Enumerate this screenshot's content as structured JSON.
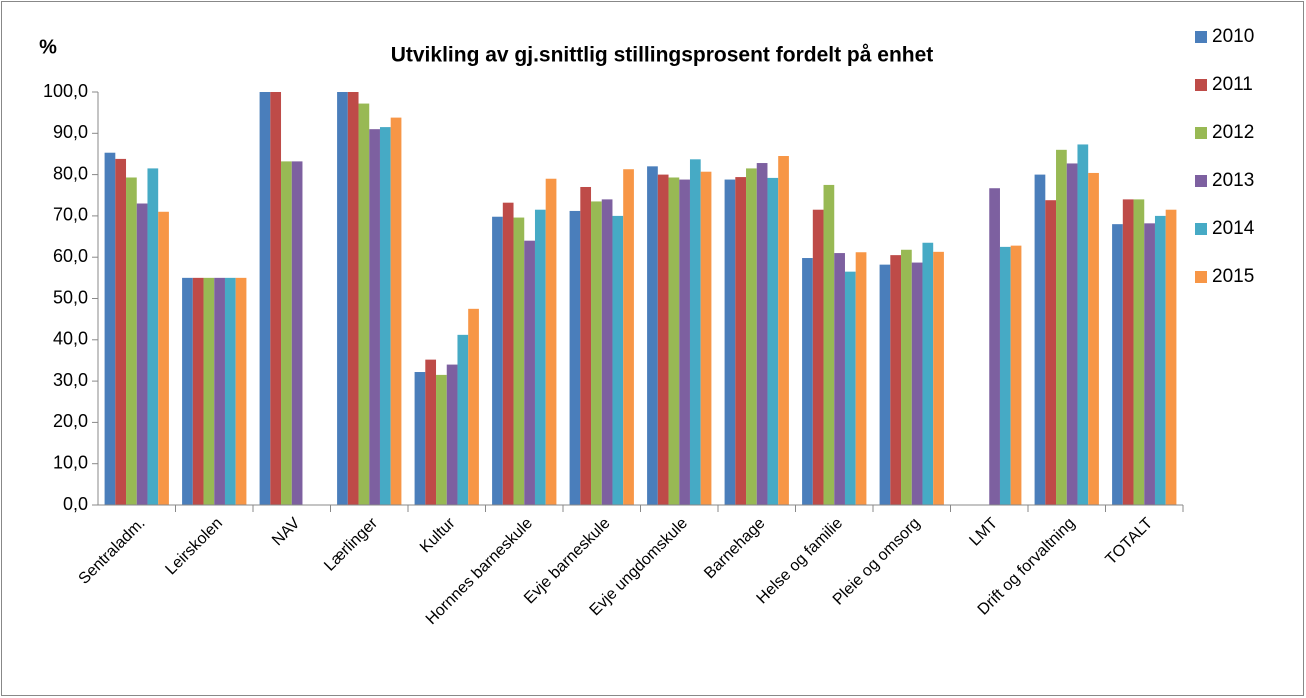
{
  "chart_data": {
    "type": "bar",
    "title": "Utvikling av gj.snittlig stillingsprosent fordelt på enhet",
    "y_label": "%",
    "categories": [
      "Sentraladm.",
      "Leirskolen",
      "NAV",
      "Lærlinger",
      "Kultur",
      "Hornnes barneskule",
      "Evje barneskule",
      "Evje ungdomskule",
      "Barnehage",
      "Helse og familie",
      "Pleie og omsorg",
      "LMT",
      "Drift og forvaltning",
      "TOTALT"
    ],
    "series": [
      {
        "name": "2010",
        "color": "#4a7ebb",
        "values": [
          85.3,
          55,
          100,
          100,
          32.2,
          69.8,
          71.2,
          82.0,
          78.8,
          59.8,
          58.2,
          null,
          80.0,
          68.0
        ]
      },
      {
        "name": "2011",
        "color": "#be4b48",
        "values": [
          83.8,
          55,
          100,
          100,
          35.2,
          73.2,
          77.0,
          80.0,
          79.4,
          71.5,
          60.5,
          null,
          73.8,
          74.0
        ]
      },
      {
        "name": "2012",
        "color": "#98b954",
        "values": [
          79.3,
          55,
          83.2,
          97.2,
          31.5,
          69.6,
          73.5,
          79.3,
          81.5,
          77.5,
          61.8,
          null,
          86.0,
          74.0
        ]
      },
      {
        "name": "2013",
        "color": "#7d60a0",
        "values": [
          73.0,
          55,
          83.2,
          91.0,
          34.0,
          64.0,
          74.0,
          78.8,
          82.8,
          61.0,
          58.7,
          76.7,
          82.7,
          68.2
        ]
      },
      {
        "name": "2014",
        "color": "#46aac5",
        "values": [
          81.5,
          55,
          null,
          91.5,
          41.2,
          71.5,
          70.0,
          83.7,
          79.2,
          56.5,
          63.5,
          62.5,
          87.3,
          70.0
        ]
      },
      {
        "name": "2015",
        "color": "#f79646",
        "values": [
          71.0,
          55,
          null,
          93.8,
          47.5,
          79.0,
          81.3,
          80.7,
          84.5,
          61.2,
          61.3,
          62.8,
          80.4,
          71.5
        ]
      }
    ],
    "ylim": [
      0,
      100
    ],
    "yticks": [
      {
        "value": 0,
        "label": "0,0"
      },
      {
        "value": 10,
        "label": "10,0"
      },
      {
        "value": 20,
        "label": "20,0"
      },
      {
        "value": 30,
        "label": "30,0"
      },
      {
        "value": 40,
        "label": "40,0"
      },
      {
        "value": 50,
        "label": "50,0"
      },
      {
        "value": 60,
        "label": "60,0"
      },
      {
        "value": 70,
        "label": "70,0"
      },
      {
        "value": 80,
        "label": "80,0"
      },
      {
        "value": 90,
        "label": "90,0"
      },
      {
        "value": 100,
        "label": "100,0"
      }
    ],
    "grid": false,
    "legend": "right"
  }
}
